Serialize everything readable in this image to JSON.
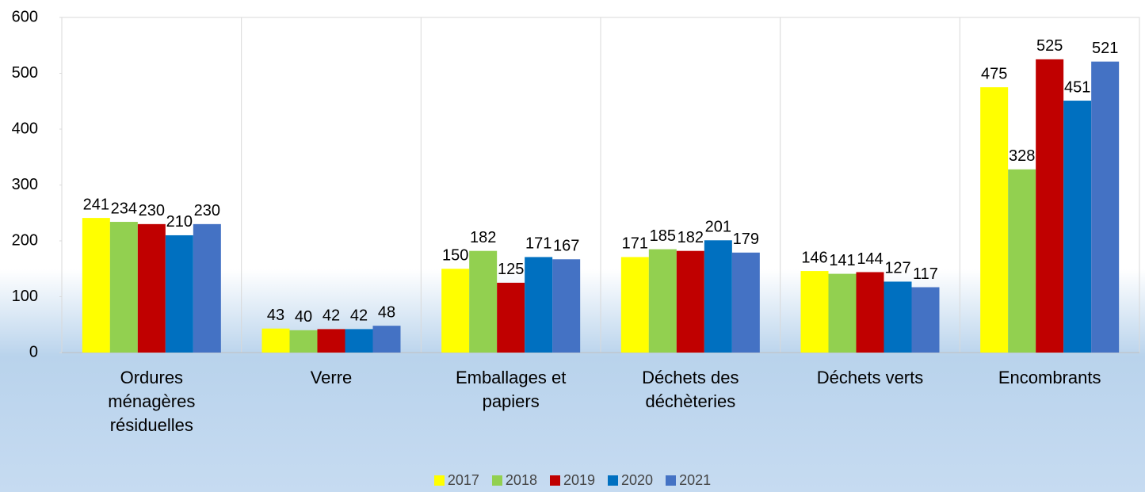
{
  "chart_data": {
    "type": "bar",
    "categories": [
      "Ordures ménagères résiduelles",
      "Verre",
      "Emballages et papiers",
      "Déchets des déchèteries",
      "Déchets verts",
      "Encombrants"
    ],
    "series": [
      {
        "name": "2017",
        "color": "#ffff00",
        "values": [
          241,
          43,
          150,
          171,
          146,
          475
        ]
      },
      {
        "name": "2018",
        "color": "#92d050",
        "values": [
          234,
          40,
          182,
          185,
          141,
          328
        ]
      },
      {
        "name": "2019",
        "color": "#c00000",
        "values": [
          230,
          42,
          125,
          182,
          144,
          525
        ]
      },
      {
        "name": "2020",
        "color": "#0070c0",
        "values": [
          210,
          42,
          171,
          201,
          127,
          451
        ]
      },
      {
        "name": "2021",
        "color": "#4472c4",
        "values": [
          230,
          48,
          167,
          179,
          117,
          521
        ]
      }
    ],
    "ylim": [
      0,
      600
    ],
    "yticks": [
      0,
      100,
      200,
      300,
      400,
      500,
      600
    ],
    "grid": "vertical",
    "legend": "bottom"
  }
}
